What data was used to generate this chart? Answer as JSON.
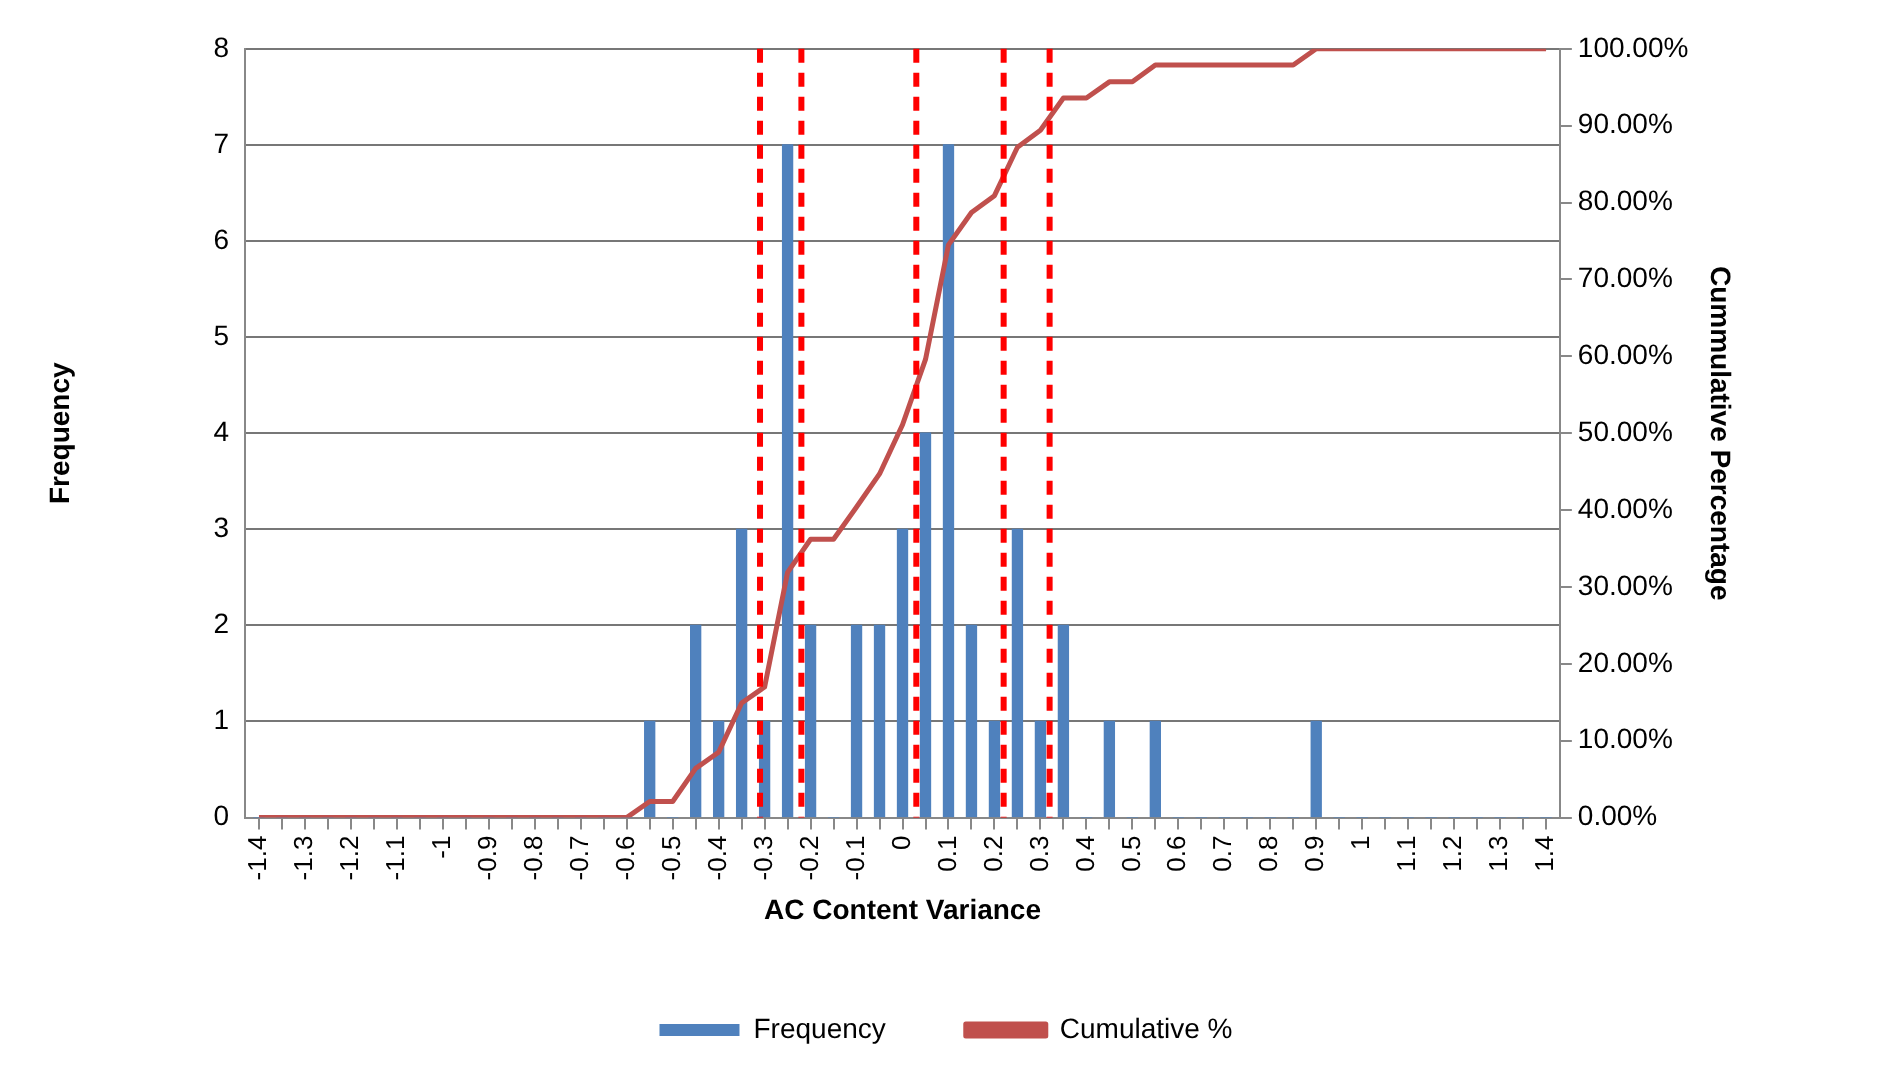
{
  "chart_data": {
    "type": "bar",
    "xlabel": "AC Content Variance",
    "ylabel": "Frequency",
    "y2label": "Cummulative Percentage",
    "x": [
      -1.4,
      -1.35,
      -1.3,
      -1.25,
      -1.2,
      -1.15,
      -1.1,
      -1.05,
      -1,
      -0.95,
      -0.9,
      -0.85,
      -0.8,
      -0.75,
      -0.7,
      -0.65,
      -0.6,
      -0.55,
      -0.5,
      -0.45,
      -0.4,
      -0.35,
      -0.3,
      -0.25,
      -0.2,
      -0.15,
      -0.1,
      -0.05,
      0,
      0.05,
      0.1,
      0.15,
      0.2,
      0.25,
      0.3,
      0.35,
      0.4,
      0.45,
      0.5,
      0.55,
      0.6,
      0.65,
      0.7,
      0.75,
      0.8,
      0.85,
      0.9,
      0.95,
      1,
      1.05,
      1.1,
      1.15,
      1.2,
      1.25,
      1.3,
      1.35,
      1.4
    ],
    "series": [
      {
        "name": "Frequency",
        "color": "#4f81bd",
        "values": [
          0,
          0,
          0,
          0,
          0,
          0,
          0,
          0,
          0,
          0,
          0,
          0,
          0,
          0,
          0,
          0,
          0,
          1,
          0,
          2,
          1,
          3,
          1,
          7,
          2,
          0,
          2,
          2,
          3,
          4,
          7,
          2,
          1,
          3,
          1,
          2,
          0,
          1,
          0,
          1,
          0,
          0,
          0,
          0,
          0,
          0,
          1,
          0,
          0,
          0,
          0,
          0,
          0,
          0,
          0,
          0,
          0
        ]
      },
      {
        "name": "Cumulative %",
        "type": "line",
        "axis": "y2",
        "color": "#c0504d",
        "values": [
          0,
          0,
          0,
          0,
          0,
          0,
          0,
          0,
          0,
          0,
          0,
          0,
          0,
          0,
          0,
          0,
          0,
          2.1,
          2.1,
          6.4,
          8.5,
          14.9,
          17,
          31.9,
          36.2,
          36.2,
          40.4,
          44.7,
          51.1,
          59.6,
          74.5,
          78.7,
          80.9,
          87.2,
          89.4,
          93.6,
          93.6,
          95.7,
          95.7,
          97.9,
          97.9,
          97.9,
          97.9,
          97.9,
          97.9,
          97.9,
          100,
          100,
          100,
          100,
          100,
          100,
          100,
          100,
          100,
          100,
          100
        ]
      }
    ],
    "xlim": [
      -1.43,
      1.43
    ],
    "xticks": [
      -1.4,
      {
        "value": -1.35,
        "label": null
      },
      -1.3,
      {
        "value": -1.25,
        "label": null
      },
      -1.2,
      {
        "value": -1.15,
        "label": null
      },
      -1.1,
      {
        "value": -1.05,
        "label": null
      },
      -1,
      {
        "value": -0.95,
        "label": null
      },
      -0.9,
      {
        "value": -0.85,
        "label": null
      },
      -0.8,
      {
        "value": -0.75,
        "label": null
      },
      -0.7,
      {
        "value": -0.65,
        "label": null
      },
      -0.6,
      {
        "value": -0.55,
        "label": null
      },
      -0.5,
      {
        "value": -0.45,
        "label": null
      },
      -0.4,
      {
        "value": -0.35,
        "label": null
      },
      -0.3,
      {
        "value": -0.25,
        "label": null
      },
      -0.2,
      {
        "value": -0.15,
        "label": null
      },
      -0.1,
      {
        "value": -0.05,
        "label": null
      },
      0,
      {
        "value": 0.05,
        "label": null
      },
      0.1,
      {
        "value": 0.15,
        "label": null
      },
      0.2,
      {
        "value": 0.25,
        "label": null
      },
      0.3,
      {
        "value": 0.35,
        "label": null
      },
      0.4,
      {
        "value": 0.45,
        "label": null
      },
      0.5,
      {
        "value": 0.55,
        "label": null
      },
      0.6,
      {
        "value": 0.65,
        "label": null
      },
      0.7,
      {
        "value": 0.75,
        "label": null
      },
      0.8,
      {
        "value": 0.85,
        "label": null
      },
      0.9,
      {
        "value": 0.95,
        "label": null
      },
      1,
      {
        "value": 1.05,
        "label": null
      },
      1.1,
      {
        "value": 1.15,
        "label": null
      },
      1.2,
      {
        "value": 1.25,
        "label": null
      },
      1.3,
      {
        "value": 1.35,
        "label": null
      },
      1.4
    ],
    "ylim": [
      0,
      8
    ],
    "yticks": [
      0,
      1,
      2,
      3,
      4,
      5,
      6,
      7,
      8
    ],
    "y2lim": [
      0,
      100
    ],
    "y2ticks": [
      {
        "value": 0,
        "label": "0.00%"
      },
      {
        "value": 10,
        "label": "10.00%"
      },
      {
        "value": 20,
        "label": "20.00%"
      },
      {
        "value": 30,
        "label": "30.00%"
      },
      {
        "value": 40,
        "label": "40.00%"
      },
      {
        "value": 50,
        "label": "50.00%"
      },
      {
        "value": 60,
        "label": "60.00%"
      },
      {
        "value": 70,
        "label": "70.00%"
      },
      {
        "value": 80,
        "label": "80.00%"
      },
      {
        "value": 90,
        "label": "90.00%"
      },
      {
        "value": 100,
        "label": "100.00%"
      }
    ],
    "ref_lines": [
      {
        "axis": "x",
        "value": -0.31,
        "color": "#ff0000",
        "line_style": "dashed"
      },
      {
        "axis": "x",
        "value": -0.22,
        "color": "#ff0000",
        "line_style": "dashed"
      },
      {
        "axis": "x",
        "value": 0.03,
        "color": "#ff0000",
        "line_style": "dashed"
      },
      {
        "axis": "x",
        "value": 0.22,
        "color": "#ff0000",
        "line_style": "dashed"
      },
      {
        "axis": "x",
        "value": 0.32,
        "color": "#ff0000",
        "line_style": "dashed"
      }
    ],
    "grid": "y",
    "legend": "bottom",
    "marker": "none",
    "line_style": "solid"
  }
}
